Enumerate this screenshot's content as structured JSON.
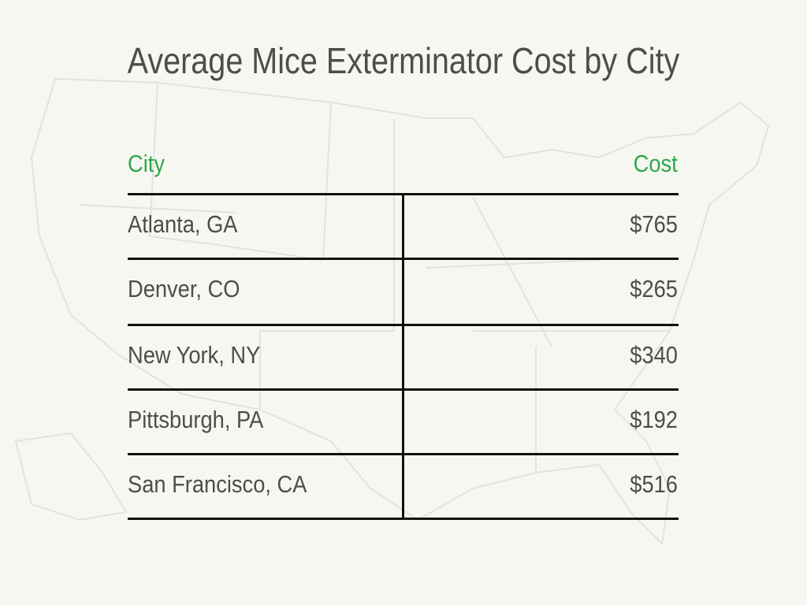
{
  "header": {
    "title": "Average Mice Exterminator Cost by City"
  },
  "table": {
    "columns": [
      "City",
      "Cost"
    ],
    "rows": [
      [
        "Atlanta, GA",
        "$765"
      ],
      [
        "Denver, CO",
        "$265"
      ],
      [
        "New York, NY",
        "$340"
      ],
      [
        "Pittsburgh, PA",
        "$192"
      ],
      [
        "San Francisco, CA",
        "$516"
      ]
    ]
  }
}
